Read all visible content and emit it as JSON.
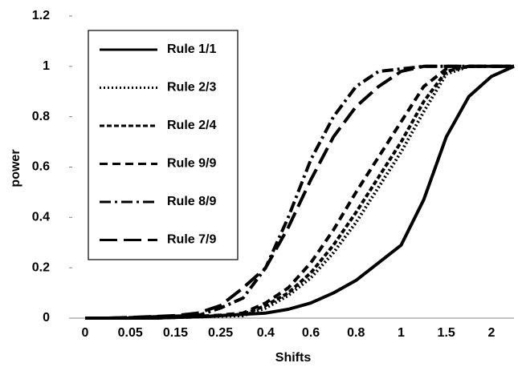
{
  "chart_data": {
    "type": "line",
    "x_label": "Shifts",
    "y_label": "power",
    "categories": [
      "0",
      null,
      "0.05",
      null,
      "0.15",
      null,
      "0.25",
      null,
      "0.4",
      null,
      "0.6",
      null,
      "0.8",
      null,
      "1",
      null,
      "1.5",
      null,
      "2",
      null
    ],
    "ylim": [
      0,
      1.2
    ],
    "yticks": [
      0,
      0.2,
      0.4,
      0.6,
      0.8,
      1,
      1.2
    ],
    "grid": false,
    "legend": "upper-left",
    "series": [
      {
        "name": "Rule 1/1",
        "color": "#000000",
        "dash": "solid",
        "values": [
          0,
          0,
          0,
          0,
          0.003,
          0.005,
          0.01,
          0.015,
          0.02,
          0.035,
          0.06,
          0.1,
          0.15,
          0.22,
          0.29,
          0.47,
          0.72,
          0.88,
          0.96,
          1
        ]
      },
      {
        "name": "Rule 2/3",
        "color": "#000000",
        "dash": "dotted",
        "values": [
          0,
          0,
          0,
          0,
          0.003,
          0.005,
          0.008,
          0.01,
          0.04,
          0.09,
          0.16,
          0.26,
          0.38,
          0.52,
          0.66,
          0.82,
          0.97,
          1,
          1,
          1
        ]
      },
      {
        "name": "Rule 2/4",
        "color": "#000000",
        "dash": "short-dash",
        "values": [
          0,
          0,
          0,
          0,
          0.003,
          0.005,
          0.01,
          0.015,
          0.05,
          0.1,
          0.18,
          0.29,
          0.42,
          0.56,
          0.7,
          0.86,
          0.98,
          1,
          1,
          1
        ]
      },
      {
        "name": "Rule 9/9",
        "color": "#000000",
        "dash": "dash",
        "values": [
          0,
          0,
          0,
          0,
          0.004,
          0.007,
          0.012,
          0.02,
          0.06,
          0.12,
          0.22,
          0.35,
          0.5,
          0.64,
          0.78,
          0.92,
          0.99,
          1,
          1,
          1
        ]
      },
      {
        "name": "Rule 8/9",
        "color": "#000000",
        "dash": "dash-dot",
        "values": [
          0,
          0,
          0.002,
          0.005,
          0.008,
          0.01,
          0.04,
          0.08,
          0.2,
          0.4,
          0.63,
          0.8,
          0.92,
          0.98,
          0.99,
          1,
          1,
          1,
          1,
          1
        ]
      },
      {
        "name": "Rule 7/9",
        "color": "#000000",
        "dash": "long-dash",
        "values": [
          0,
          0,
          0.003,
          0.006,
          0.01,
          0.02,
          0.05,
          0.12,
          0.2,
          0.36,
          0.55,
          0.72,
          0.84,
          0.92,
          0.98,
          1,
          1,
          1,
          1,
          1
        ]
      }
    ]
  }
}
